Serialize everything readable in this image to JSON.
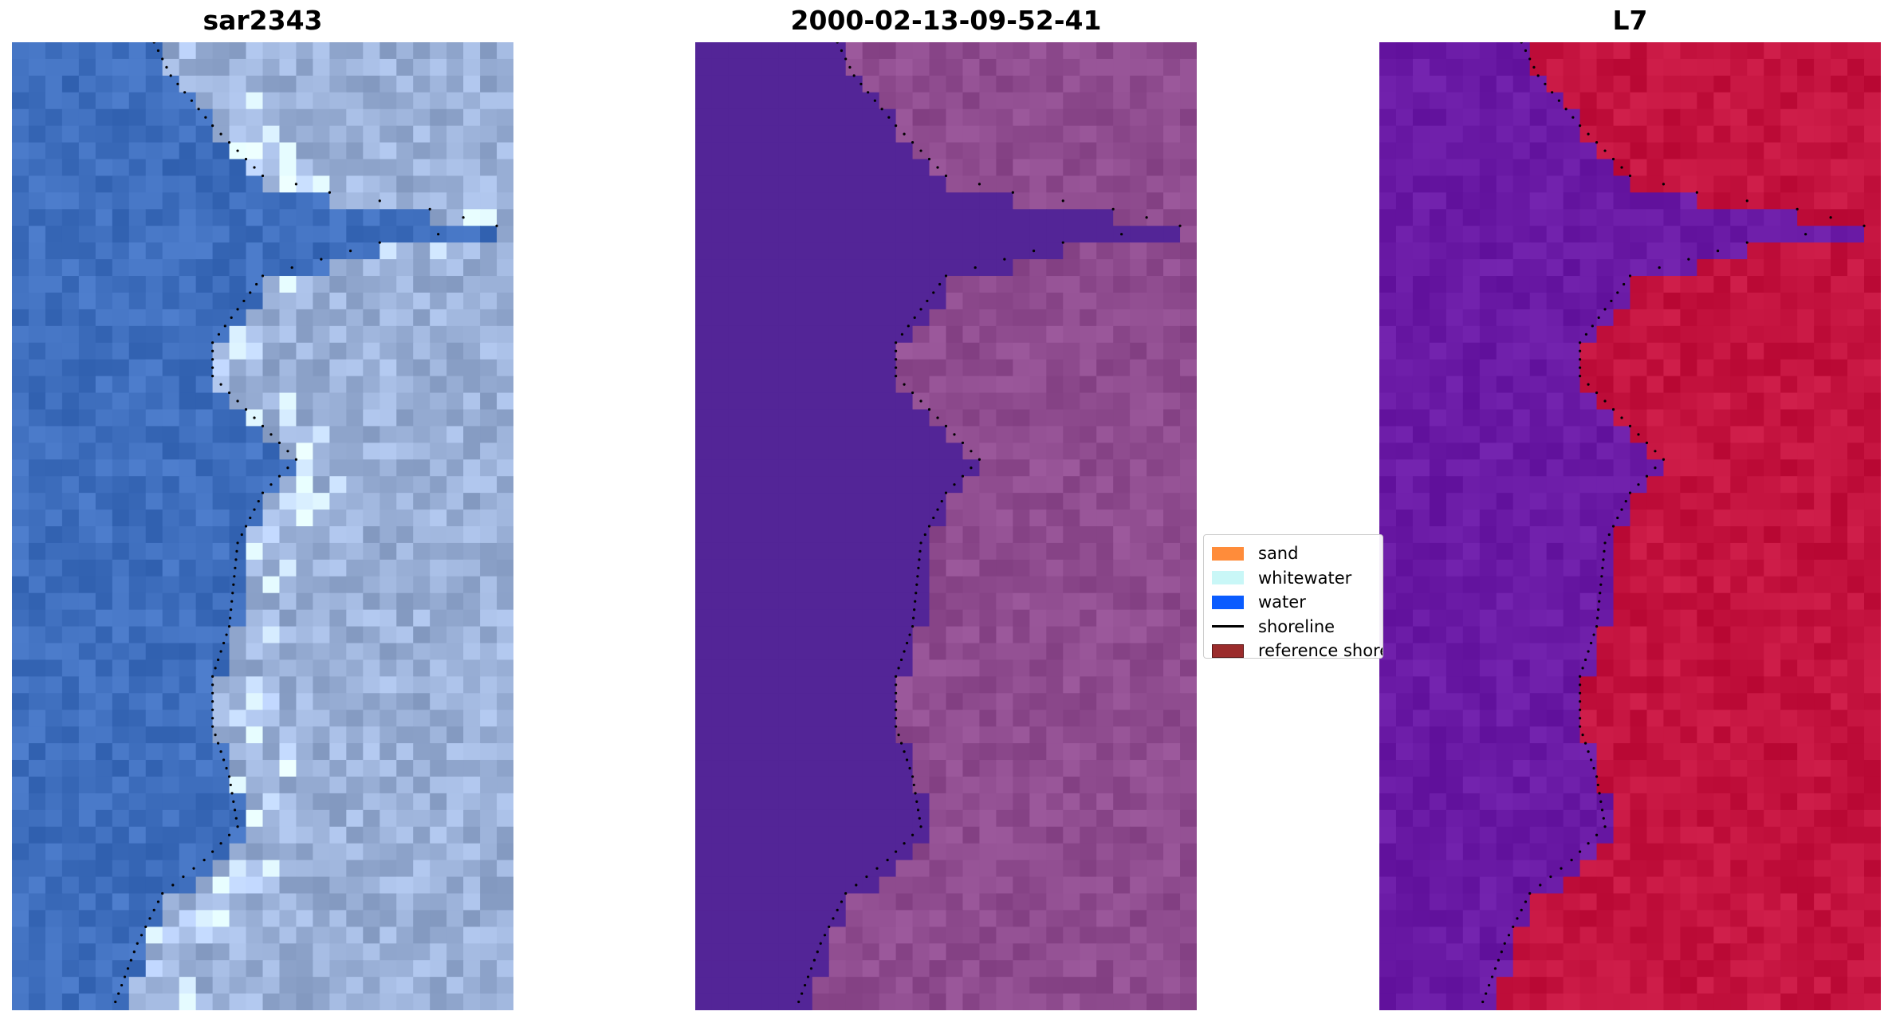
{
  "panels": [
    {
      "title": "sar2343",
      "colormap": "rgb"
    },
    {
      "title": "2000-02-13-09-52-41",
      "colormap": "classified"
    },
    {
      "title": "L7",
      "colormap": "index"
    }
  ],
  "legend": {
    "items": [
      {
        "label": "sand",
        "color": "#ff8c3a",
        "kind": "patch"
      },
      {
        "label": "whitewater",
        "color": "#c9f7f7",
        "kind": "patch"
      },
      {
        "label": "water",
        "color": "#0a5cff",
        "kind": "patch"
      },
      {
        "label": "shoreline",
        "color": "#000000",
        "kind": "line"
      },
      {
        "label": "reference shoreline",
        "color": "#9b2c2c",
        "kind": "patch"
      }
    ]
  },
  "colors": {
    "water_rgb": "#3f6fbe",
    "land_rgb": "#9bb1d8",
    "water_classified": "#532597",
    "land_classified": "#8f4c8f",
    "water_index": "#6a1aa5",
    "land_index": "#c4133f"
  }
}
